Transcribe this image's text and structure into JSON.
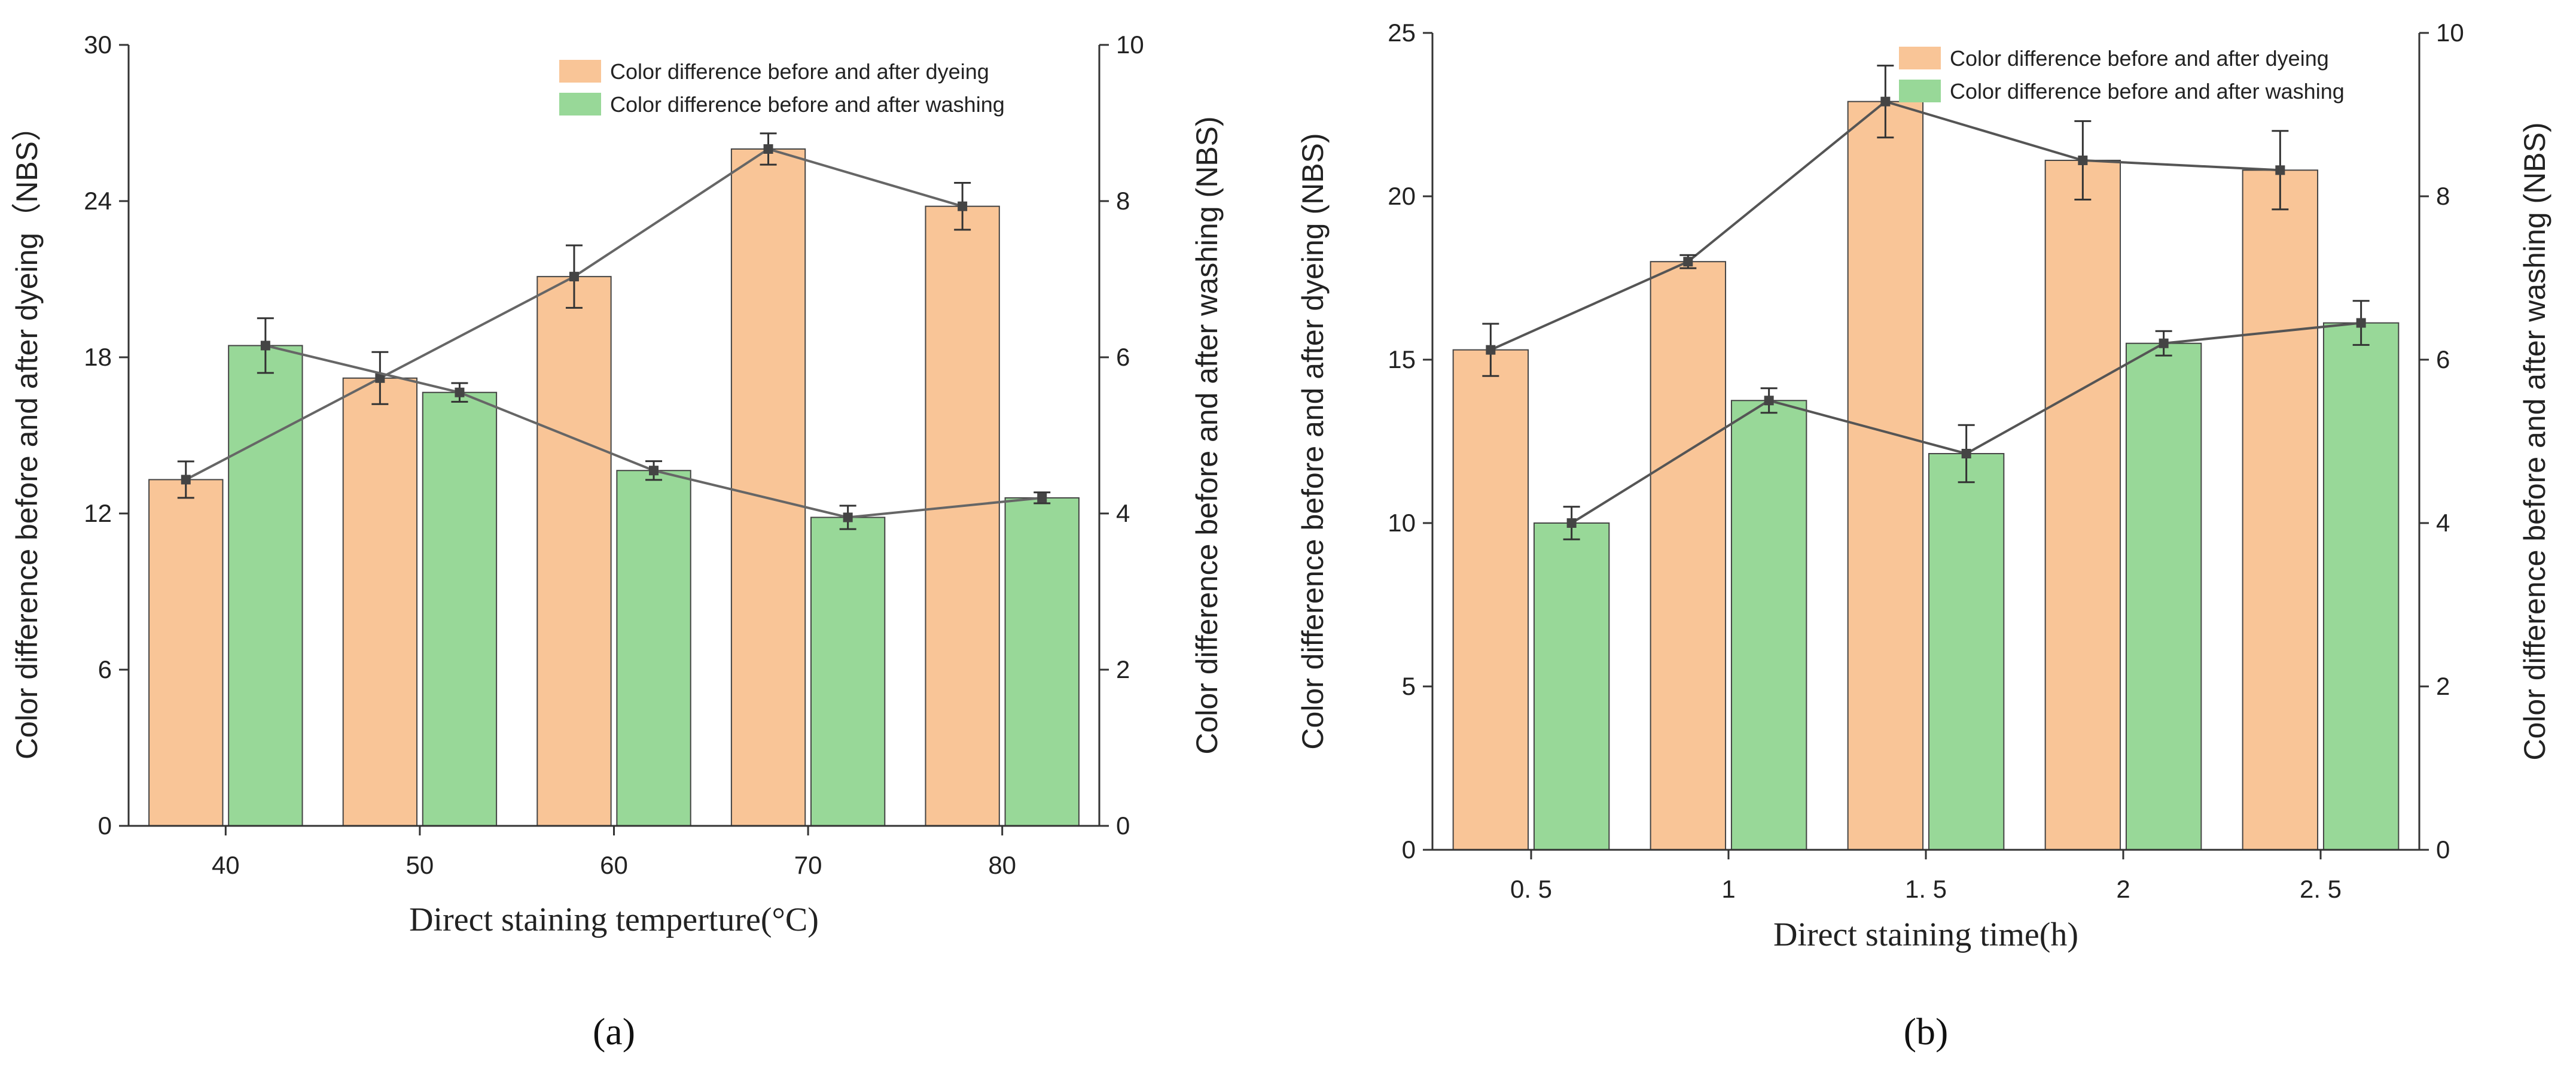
{
  "chart_data": [
    {
      "type": "bar",
      "panel_label": "(a)",
      "xlabel": "Direct staining temperture(°C)",
      "ylabel_left": "Color difference before and after dyeing（NBS）",
      "ylabel_right": "Color difference before and after washing (NBS)",
      "categories": [
        "40",
        "50",
        "60",
        "70",
        "80"
      ],
      "ylim_left": [
        0,
        30
      ],
      "yticks_left": [
        0,
        6,
        12,
        18,
        24,
        30
      ],
      "ylim_right": [
        0,
        10
      ],
      "yticks_right": [
        0,
        2,
        4,
        6,
        8,
        10
      ],
      "legend_position": "top-right",
      "colors": {
        "dyeing": "#F9C597",
        "washing": "#98D898",
        "line": "#666666"
      },
      "series": [
        {
          "name": "Color difference before and after dyeing",
          "axis": "left",
          "values": [
            13.3,
            17.2,
            21.1,
            26.0,
            23.8
          ],
          "errors": [
            0.7,
            1.0,
            1.2,
            0.6,
            0.9
          ]
        },
        {
          "name": "Color difference before and after washing",
          "axis": "right",
          "values": [
            6.15,
            5.55,
            4.55,
            3.95,
            4.2
          ],
          "errors": [
            0.35,
            0.12,
            0.12,
            0.15,
            0.07
          ]
        }
      ]
    },
    {
      "type": "bar",
      "panel_label": "(b)",
      "xlabel": "Direct staining time(h)",
      "ylabel_left": "Color difference before and after dyeing (NBS)",
      "ylabel_right": "Color difference before and after washing (NBS)",
      "categories": [
        "0. 5",
        "1",
        "1. 5",
        "2",
        "2. 5"
      ],
      "ylim_left": [
        0,
        25
      ],
      "yticks_left": [
        0,
        5,
        10,
        15,
        20,
        25
      ],
      "ylim_right": [
        0,
        10
      ],
      "yticks_right": [
        0,
        2,
        4,
        6,
        8,
        10
      ],
      "legend_position": "top-right",
      "colors": {
        "dyeing": "#F9C597",
        "washing": "#98D898",
        "line": "#555555"
      },
      "series": [
        {
          "name": "Color difference before and after dyeing",
          "axis": "left",
          "values": [
            15.3,
            18.0,
            22.9,
            21.1,
            20.8
          ],
          "errors": [
            0.8,
            0.2,
            1.1,
            1.2,
            1.2
          ]
        },
        {
          "name": "Color difference before and after washing",
          "axis": "right",
          "values": [
            4.0,
            5.5,
            4.85,
            6.2,
            6.45
          ],
          "errors": [
            0.2,
            0.15,
            0.35,
            0.15,
            0.27
          ]
        }
      ]
    }
  ]
}
